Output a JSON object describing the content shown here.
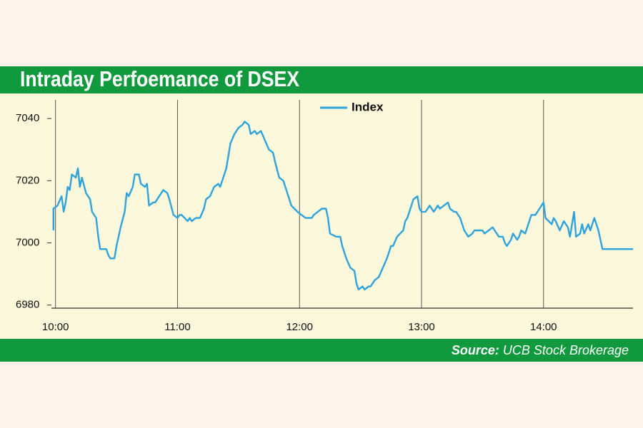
{
  "chart_data": {
    "type": "line",
    "title": "Intraday Perfoemance of DSEX",
    "source_label": "Source:",
    "source": "UCB Stock Brokerage",
    "legend": "top",
    "grid": true,
    "xlim": [
      598,
      884
    ],
    "xticks": [
      {
        "value": 600,
        "label": "10:00"
      },
      {
        "value": 660,
        "label": "11:00"
      },
      {
        "value": 720,
        "label": "12:00"
      },
      {
        "value": 780,
        "label": "13:00"
      },
      {
        "value": 840,
        "label": "14:00"
      }
    ],
    "ylim": [
      6979,
      7046
    ],
    "yticks": [
      6980,
      7000,
      7020,
      7040
    ],
    "series": [
      {
        "name": "Index",
        "color": "#2ea3dc",
        "x": [
          599,
          599,
          601,
          603,
          604,
          605,
          606,
          607,
          608,
          610,
          611,
          612,
          613,
          615,
          617,
          618,
          620,
          621,
          622,
          625,
          626,
          627,
          629,
          630,
          632,
          634,
          635,
          636,
          638,
          639,
          641,
          642,
          644,
          645,
          646,
          648,
          649,
          651,
          652,
          653,
          655,
          656,
          658,
          660,
          661,
          662,
          665,
          666,
          667,
          669,
          671,
          673,
          674,
          676,
          678,
          680,
          681,
          684,
          686,
          688,
          690,
          692,
          693,
          695,
          696,
          698,
          699,
          701,
          703,
          705,
          707,
          708,
          710,
          712,
          714,
          716,
          719,
          721,
          723,
          724,
          726,
          727,
          729,
          731,
          733,
          734,
          735,
          738,
          740,
          741,
          743,
          745,
          747,
          748,
          749,
          751,
          752,
          754,
          755,
          757,
          759,
          761,
          763,
          765,
          766,
          768,
          771,
          772,
          773,
          775,
          776,
          778,
          779,
          780,
          782,
          784,
          786,
          788,
          789,
          791,
          793,
          794,
          796,
          797,
          799,
          801,
          803,
          805,
          806,
          808,
          810,
          811,
          813,
          815,
          817,
          818,
          820,
          821,
          822,
          824,
          825,
          827,
          828,
          829,
          831,
          832,
          834,
          836,
          838,
          840,
          841,
          844,
          845,
          846,
          848,
          850,
          852,
          853,
          855,
          856,
          858,
          859,
          860,
          862,
          863,
          865,
          867,
          869,
          884
        ],
        "values": [
          7004,
          7011,
          7012,
          7015,
          7010,
          7013,
          7018,
          7017,
          7022,
          7021,
          7024,
          7018,
          7021,
          7016,
          7014,
          7010,
          7008,
          7002,
          6998,
          6998,
          6996,
          6995,
          6995,
          6999,
          7005,
          7010,
          7016,
          7015,
          7018,
          7022,
          7022,
          7019,
          7018,
          7019,
          7012,
          7013,
          7013,
          7015,
          7016,
          7017,
          7016,
          7014,
          7009,
          7008,
          7009,
          7009,
          7007,
          7008,
          7007,
          7008,
          7008,
          7011,
          7014,
          7015,
          7018,
          7019,
          7018,
          7024,
          7032,
          7035,
          7037,
          7038,
          7039,
          7038,
          7035,
          7036,
          7035,
          7036,
          7033,
          7030,
          7029,
          7026,
          7021,
          7020,
          7016,
          7012,
          7010,
          7009,
          7008,
          7008,
          7008,
          7009,
          7010,
          7011,
          7011,
          7008,
          7003,
          7002,
          7002,
          6999,
          6995,
          6992,
          6991,
          6987,
          6985,
          6986,
          6985,
          6986,
          6986,
          6988,
          6989,
          6992,
          6995,
          6999,
          6999,
          7002,
          7004,
          7007,
          7008,
          7012,
          7014,
          7015,
          7011,
          7010,
          7010,
          7012,
          7010,
          7012,
          7011,
          7012,
          7013,
          7011,
          7010,
          7010,
          7008,
          7004,
          7002,
          7003,
          7004,
          7004,
          7004,
          7003,
          7004,
          7005,
          7003,
          7002,
          7002,
          7000,
          6999,
          7001,
          7003,
          7001,
          7002,
          7004,
          7003,
          7005,
          7009,
          7009,
          7011,
          7013,
          7008,
          7006,
          7008,
          7007,
          7004,
          7007,
          7005,
          7002,
          7010,
          7002,
          7003,
          7006,
          7003,
          7006,
          7004,
          7008,
          7004,
          6998,
          6998
        ]
      }
    ]
  }
}
